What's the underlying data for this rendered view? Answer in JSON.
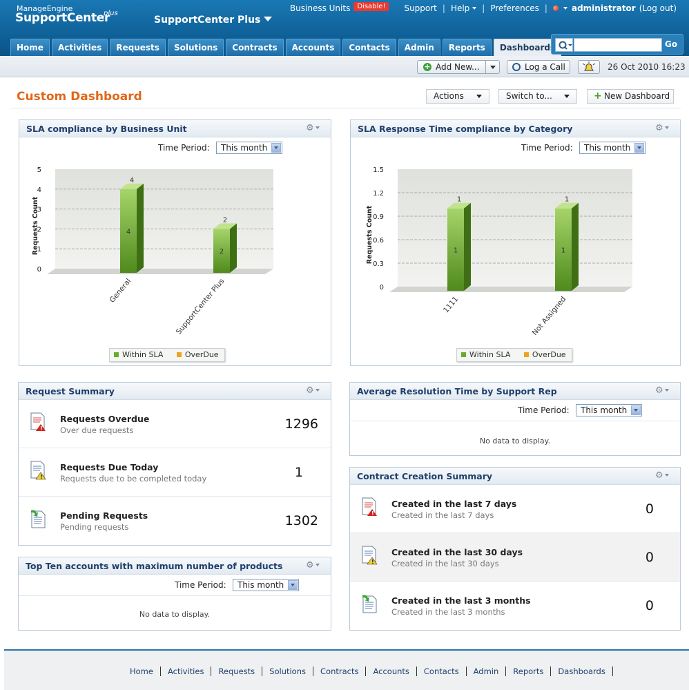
{
  "header": {
    "brand_small": "ManageEngine",
    "brand_big": "SupportCenter",
    "brand_plus": "plus",
    "instance": "SupportCenter Plus",
    "business_units": "Business Units",
    "bu_badge": "Disable!",
    "support": "Support",
    "help": "Help",
    "preferences": "Preferences",
    "user": "administrator",
    "logout": "(Log out)",
    "search_go": "Go"
  },
  "tabs": [
    "Home",
    "Activities",
    "Requests",
    "Solutions",
    "Contracts",
    "Accounts",
    "Contacts",
    "Admin",
    "Reports",
    "Dashboards"
  ],
  "toolbar": {
    "add_new": "Add New...",
    "log_call": "Log a Call",
    "datetime": "26 Oct 2010 16:23"
  },
  "page": {
    "title": "Custom Dashboard",
    "actions": "Actions",
    "switch_to": "Switch to...",
    "new_dashboard": "New Dashboard"
  },
  "time_period_label": "Time Period:",
  "time_period_value": "This month",
  "no_data": "No data to display.",
  "panels": {
    "sla_bu": {
      "title": "SLA compliance by Business Unit"
    },
    "sla_cat": {
      "title": "SLA Response Time compliance by Category"
    },
    "req_summary": {
      "title": "Request Summary",
      "rows": [
        {
          "title": "Requests Overdue",
          "sub": "Over due requests",
          "value": "1296"
        },
        {
          "title": "Requests Due Today",
          "sub": "Requests due to be completed today",
          "value": "1"
        },
        {
          "title": "Pending Requests",
          "sub": "Pending requests",
          "value": "1302"
        }
      ]
    },
    "top_ten": {
      "title": "Top Ten accounts with maximum number of products"
    },
    "avg_res": {
      "title": "Average Resolution Time by Support Rep"
    },
    "contract": {
      "title": "Contract Creation Summary",
      "rows": [
        {
          "title": "Created in the last 7 days",
          "sub": "Created in the last 7 days",
          "value": "0"
        },
        {
          "title": "Created in the last 30 days",
          "sub": "Created in the last 30 days",
          "value": "0"
        },
        {
          "title": "Created in the last 3 months",
          "sub": "Created in the last 3 months",
          "value": "0"
        }
      ]
    }
  },
  "chart_data": [
    {
      "type": "bar",
      "title": "SLA compliance by Business Unit",
      "ylabel": "Requests Count",
      "categories": [
        "General",
        "SupportCenter Plus"
      ],
      "yticks": [
        "0",
        "1",
        "2",
        "3",
        "4",
        "5"
      ],
      "ylim": [
        0,
        5
      ],
      "series": [
        {
          "name": "Within SLA",
          "values": [
            4,
            2
          ],
          "color": "#6aaa2e"
        },
        {
          "name": "OverDue",
          "values": [
            0,
            0
          ],
          "color": "#f0a21e"
        }
      ],
      "data_labels": [
        "4",
        "2"
      ],
      "legend": "bottom"
    },
    {
      "type": "bar",
      "title": "SLA Response Time compliance by Category",
      "ylabel": "Requests Count",
      "categories": [
        "1111",
        "Not Assigned"
      ],
      "yticks": [
        "0",
        "0.3",
        "0.6",
        "0.9",
        "1.2",
        "1.5"
      ],
      "ylim": [
        0,
        1.5
      ],
      "series": [
        {
          "name": "Within SLA",
          "values": [
            1,
            1
          ],
          "color": "#6aaa2e"
        },
        {
          "name": "OverDue",
          "values": [
            0,
            0
          ],
          "color": "#f0a21e"
        }
      ],
      "data_labels": [
        "1",
        "1"
      ],
      "legend": "bottom"
    }
  ],
  "footer": [
    "Home",
    "Activities",
    "Requests",
    "Solutions",
    "Contracts",
    "Accounts",
    "Contacts",
    "Admin",
    "Reports",
    "Dashboards"
  ]
}
